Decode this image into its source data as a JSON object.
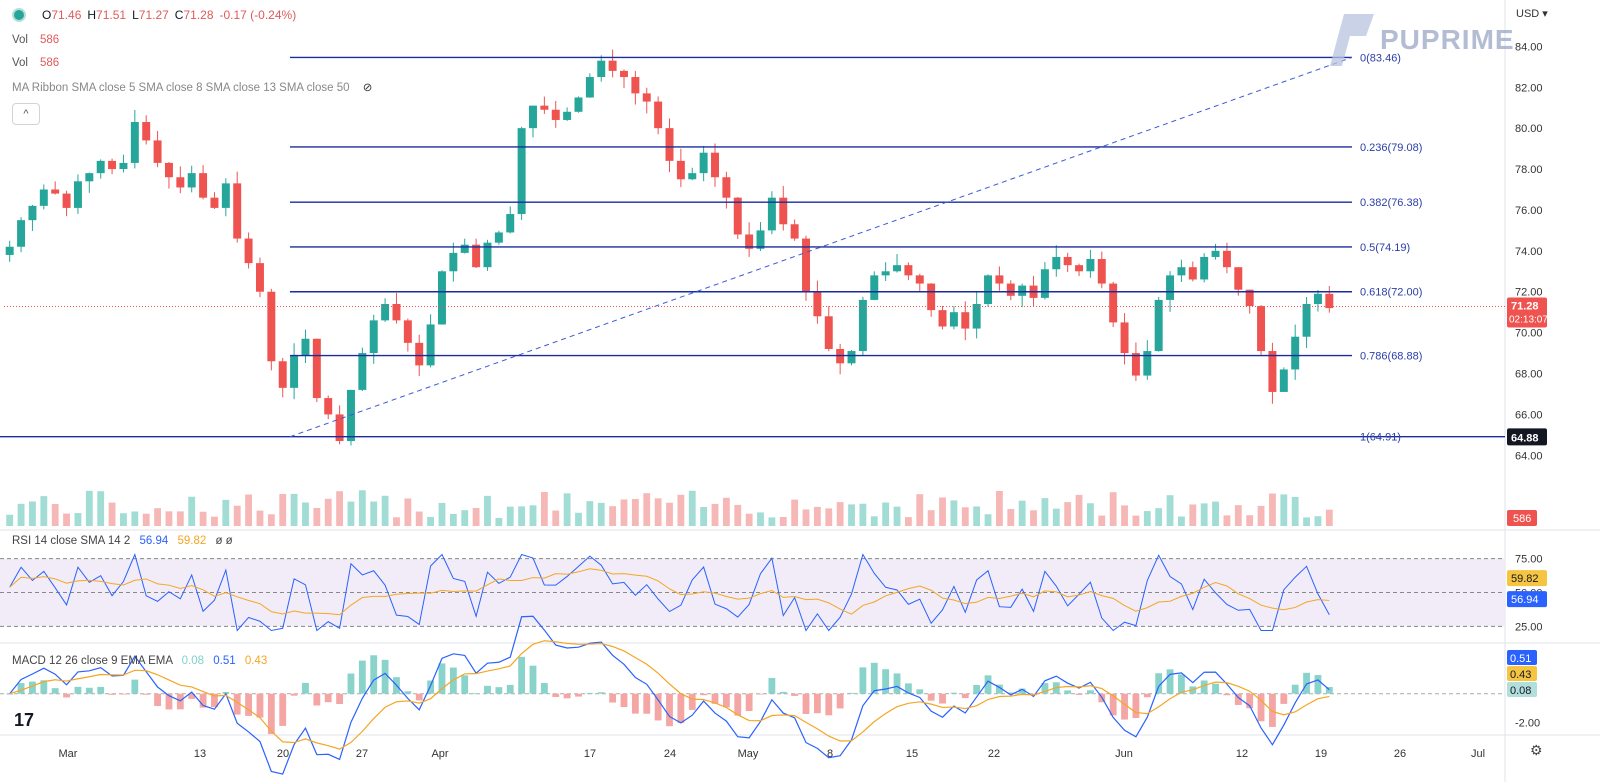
{
  "header": {
    "ohlc": [
      {
        "k": "O",
        "v": "71.46"
      },
      {
        "k": "H",
        "v": "71.51"
      },
      {
        "k": "L",
        "v": "71.27"
      },
      {
        "k": "C",
        "v": "71.28"
      },
      {
        "k": "",
        "v": "-0.17 (-0.24%)"
      }
    ],
    "vol_label_1": "Vol",
    "vol_value_1": "586",
    "vol_label_2": "Vol",
    "vol_value_2": "586",
    "ma_ribbon": "MA Ribbon SMA close 5 SMA close 8 SMA close 13 SMA close 50",
    "collapse": "^",
    "currency": "USD",
    "logo": "PUPRIME",
    "tv_logo": "17"
  },
  "indicators": {
    "rsi": {
      "label": "RSI 14 close SMA 14 2",
      "value": "56.94",
      "sma": "59.82",
      "extra": "ø ø"
    },
    "macd": {
      "label": "MACD 12 26 close 9 EMA EMA",
      "hist": "0.08",
      "macd": "0.51",
      "signal": "0.43"
    }
  },
  "colors": {
    "up": "#26a69a",
    "down": "#ef5350",
    "fib": "#1a2c9e",
    "rsi_line": "#2962ff",
    "rsi_sma": "#f5a623",
    "macd_line": "#2962ff",
    "signal_line": "#f5a623"
  },
  "chart_data": {
    "type": "candlestick",
    "title": "",
    "y_ticks": [
      "84.00",
      "82.00",
      "80.00",
      "78.00",
      "76.00",
      "74.00",
      "72.00",
      "70.00",
      "68.00",
      "66.00",
      "64.00"
    ],
    "x_ticks": [
      "Mar",
      "13",
      "20",
      "27",
      "Apr",
      "17",
      "24",
      "May",
      "8",
      "15",
      "22",
      "Jun",
      "12",
      "19",
      "26",
      "Jul"
    ],
    "ylim": [
      62.5,
      84.8
    ],
    "last_price": {
      "value": "71.28",
      "countdown": "02:13:07"
    },
    "low_marker": "64.88",
    "vol_marker": "586",
    "fib_levels": [
      {
        "label": "0(83.46)",
        "value": 83.46
      },
      {
        "label": "0.236(79.08)",
        "value": 79.08
      },
      {
        "label": "0.382(76.38)",
        "value": 76.38
      },
      {
        "label": "0.5(74.19)",
        "value": 74.19
      },
      {
        "label": "0.618(72.00)",
        "value": 72.0
      },
      {
        "label": "0.786(68.88)",
        "value": 68.88
      },
      {
        "label": "1(64.91)",
        "value": 64.91
      }
    ],
    "close_path": [
      74.2,
      75.5,
      76.2,
      77.0,
      76.8,
      76.1,
      77.4,
      77.8,
      78.4,
      78.0,
      78.3,
      80.3,
      79.4,
      78.3,
      77.6,
      77.1,
      77.8,
      76.6,
      76.1,
      77.3,
      74.6,
      73.4,
      72.0,
      68.6,
      67.3,
      68.9,
      69.7,
      66.8,
      66.0,
      64.7,
      67.2,
      69.0,
      70.6,
      71.4,
      70.6,
      69.5,
      68.4,
      70.4,
      73.0,
      73.9,
      74.3,
      73.2,
      74.4,
      74.9,
      75.8,
      80.0,
      81.1,
      80.9,
      80.4,
      80.8,
      81.5,
      82.5,
      83.3,
      82.8,
      82.5,
      81.7,
      81.3,
      80.0,
      78.4,
      77.5,
      77.8,
      78.8,
      77.6,
      76.6,
      74.8,
      74.1,
      75.0,
      76.6,
      75.3,
      74.6,
      72.0,
      70.8,
      69.2,
      68.5,
      69.1,
      71.6,
      72.8,
      73.0,
      73.3,
      72.8,
      72.4,
      71.1,
      70.3,
      71.0,
      70.2,
      71.4,
      72.8,
      72.4,
      71.8,
      72.3,
      71.7,
      73.1,
      73.7,
      73.3,
      73.0,
      73.6,
      72.4,
      70.5,
      69.0,
      67.9,
      69.1,
      71.6,
      72.8,
      73.2,
      72.6,
      73.7,
      74.0,
      73.2,
      72.1,
      71.3,
      69.1,
      67.1,
      68.2,
      69.8,
      71.4,
      71.9,
      71.2
    ],
    "rsi": {
      "levels": [
        75,
        50,
        25
      ],
      "ticks": [
        "75.00",
        "50.00",
        "25.00"
      ],
      "ylim": [
        15,
        85
      ]
    },
    "macd": {
      "ticks": [
        "0.00",
        "-2.00"
      ],
      "ylim": [
        -2.4,
        3.2
      ]
    }
  }
}
